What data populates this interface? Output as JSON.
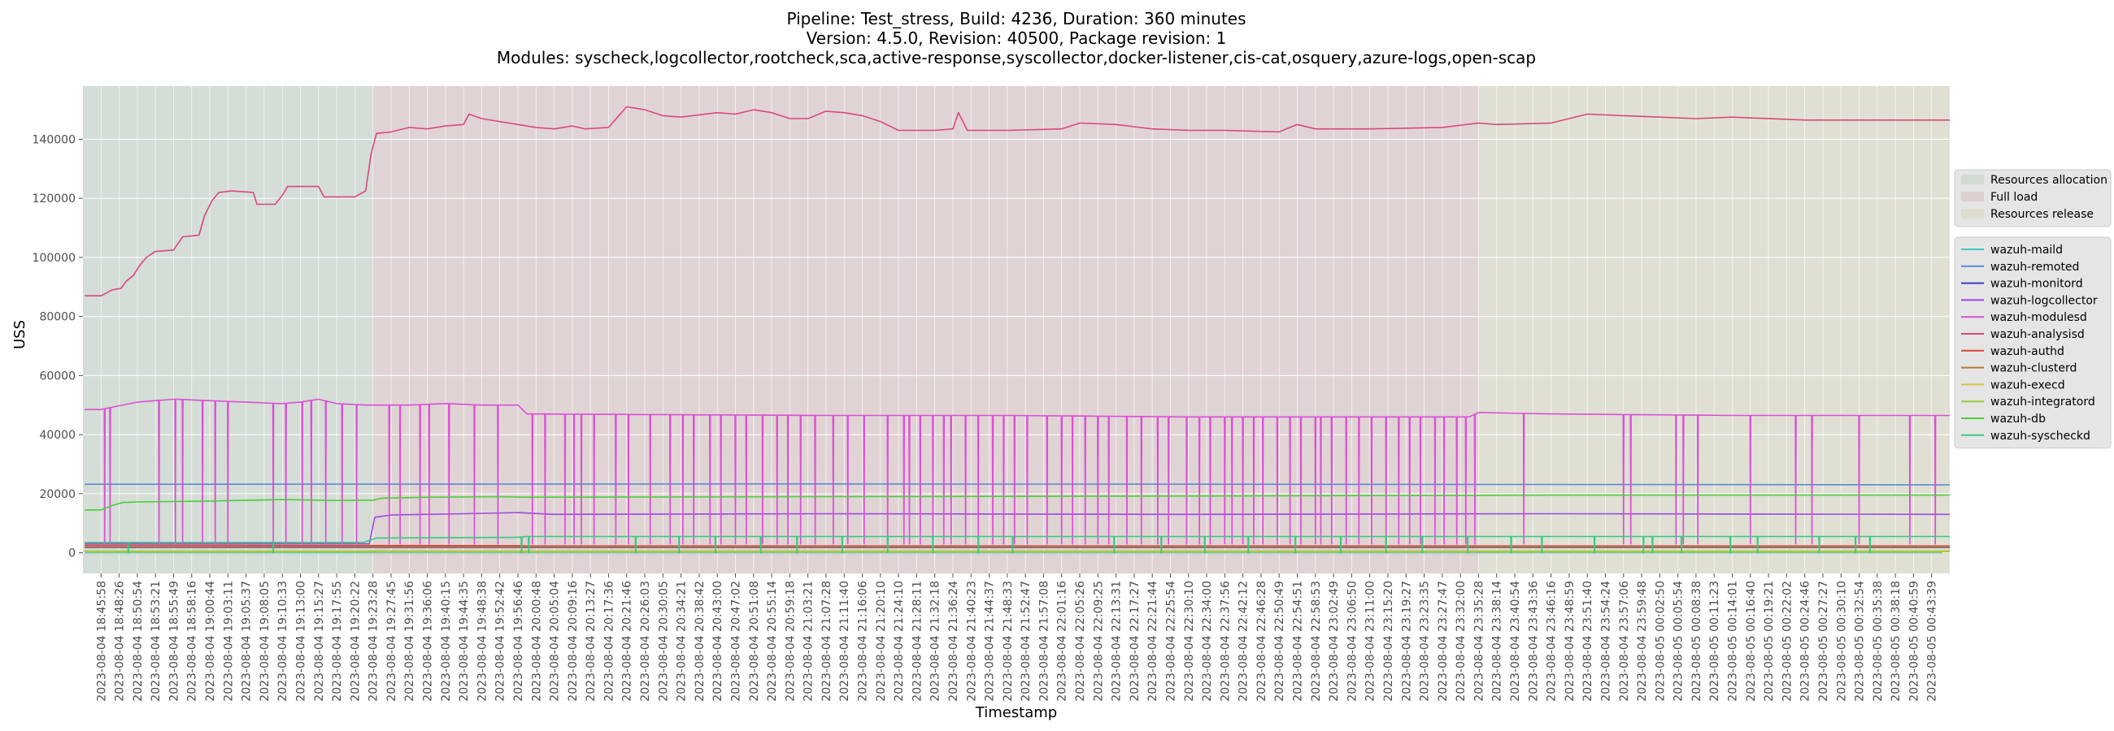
{
  "chart_data": {
    "type": "line",
    "title_lines": [
      "Pipeline: Test_stress, Build: 4236, Duration: 360 minutes",
      "Version: 4.5.0, Revision: 40500, Package revision: 1",
      "Modules: syscheck,logcollector,rootcheck,sca,active-response,syscollector,docker-listener,cis-cat,osquery,azure-logs,open-scap"
    ],
    "xlabel": "Timestamp",
    "ylabel": "USS",
    "ylim": [
      -7000,
      158000
    ],
    "yticks": [
      0,
      20000,
      40000,
      60000,
      80000,
      100000,
      120000,
      140000
    ],
    "ytick_labels": [
      "0",
      "20000",
      "40000",
      "60000",
      "80000",
      "100000",
      "120000",
      "140000"
    ],
    "x_tick_labels": [
      "2023-08-04 18:45:58",
      "2023-08-04 18:48:26",
      "2023-08-04 18:50:54",
      "2023-08-04 18:53:21",
      "2023-08-04 18:55:49",
      "2023-08-04 18:58:16",
      "2023-08-04 19:00:44",
      "2023-08-04 19:03:11",
      "2023-08-04 19:05:37",
      "2023-08-04 19:08:05",
      "2023-08-04 19:10:33",
      "2023-08-04 19:13:00",
      "2023-08-04 19:15:27",
      "2023-08-04 19:17:55",
      "2023-08-04 19:20:22",
      "2023-08-04 19:23:28",
      "2023-08-04 19:27:45",
      "2023-08-04 19:31:56",
      "2023-08-04 19:36:06",
      "2023-08-04 19:40:15",
      "2023-08-04 19:44:35",
      "2023-08-04 19:48:38",
      "2023-08-04 19:52:42",
      "2023-08-04 19:56:46",
      "2023-08-04 20:00:48",
      "2023-08-04 20:05:04",
      "2023-08-04 20:09:16",
      "2023-08-04 20:13:27",
      "2023-08-04 20:17:36",
      "2023-08-04 20:21:46",
      "2023-08-04 20:26:03",
      "2023-08-04 20:30:05",
      "2023-08-04 20:34:21",
      "2023-08-04 20:38:42",
      "2023-08-04 20:43:00",
      "2023-08-04 20:47:02",
      "2023-08-04 20:51:08",
      "2023-08-04 20:55:14",
      "2023-08-04 20:59:18",
      "2023-08-04 21:03:21",
      "2023-08-04 21:07:28",
      "2023-08-04 21:11:40",
      "2023-08-04 21:16:06",
      "2023-08-04 21:20:10",
      "2023-08-04 21:24:10",
      "2023-08-04 21:28:11",
      "2023-08-04 21:32:18",
      "2023-08-04 21:36:24",
      "2023-08-04 21:40:23",
      "2023-08-04 21:44:37",
      "2023-08-04 21:48:33",
      "2023-08-04 21:52:47",
      "2023-08-04 21:57:08",
      "2023-08-04 22:01:16",
      "2023-08-04 22:05:26",
      "2023-08-04 22:09:25",
      "2023-08-04 22:13:31",
      "2023-08-04 22:17:27",
      "2023-08-04 22:21:44",
      "2023-08-04 22:25:54",
      "2023-08-04 22:30:10",
      "2023-08-04 22:34:00",
      "2023-08-04 22:37:56",
      "2023-08-04 22:42:12",
      "2023-08-04 22:46:28",
      "2023-08-04 22:50:49",
      "2023-08-04 22:54:51",
      "2023-08-04 22:58:53",
      "2023-08-04 23:02:49",
      "2023-08-04 23:06:50",
      "2023-08-04 23:11:00",
      "2023-08-04 23:15:20",
      "2023-08-04 23:19:27",
      "2023-08-04 23:23:35",
      "2023-08-04 23:27:47",
      "2023-08-04 23:32:00",
      "2023-08-04 23:35:28",
      "2023-08-04 23:38:14",
      "2023-08-04 23:40:54",
      "2023-08-04 23:43:36",
      "2023-08-04 23:46:16",
      "2023-08-04 23:48:59",
      "2023-08-04 23:51:40",
      "2023-08-04 23:54:24",
      "2023-08-04 23:57:06",
      "2023-08-04 23:59:48",
      "2023-08-05 00:02:50",
      "2023-08-05 00:05:54",
      "2023-08-05 00:08:38",
      "2023-08-05 00:11:23",
      "2023-08-05 00:14:01",
      "2023-08-05 00:16:40",
      "2023-08-05 00:19:21",
      "2023-08-05 00:22:02",
      "2023-08-05 00:24:46",
      "2023-08-05 00:27:27",
      "2023-08-05 00:30:10",
      "2023-08-05 00:32:54",
      "2023-08-05 00:35:38",
      "2023-08-05 00:38:18",
      "2023-08-05 00:40:59",
      "2023-08-05 00:43:39"
    ],
    "phases": [
      {
        "name": "Resources allocation",
        "color": "#b7cbbd",
        "from_tick": 0,
        "to_tick": 15
      },
      {
        "name": "Full load",
        "color": "#d3b6b8",
        "from_tick": 15,
        "to_tick": 76
      },
      {
        "name": "Resources release",
        "color": "#d1d2b6",
        "from_tick": 76,
        "to_tick": 102
      }
    ],
    "grid": true,
    "legend_placement": "right",
    "series": [
      {
        "name": "wazuh-maild",
        "color": "#3fc8c4",
        "points": [
          [
            0,
            0
          ]
        ],
        "sparse_dips": []
      },
      {
        "name": "wazuh-remoted",
        "color": "#5b8ad6",
        "points": [
          [
            0,
            23200
          ],
          [
            40,
            23300
          ],
          [
            102,
            23000
          ]
        ],
        "sparse_dips": []
      },
      {
        "name": "wazuh-monitord",
        "color": "#3a3ac2",
        "points": [
          [
            0,
            1800
          ],
          [
            102,
            1800
          ]
        ],
        "sparse_dips": []
      },
      {
        "name": "wazuh-logcollector",
        "color": "#9a48e0",
        "points": [
          [
            0,
            3000
          ],
          [
            14.8,
            3000
          ],
          [
            15.1,
            12000
          ],
          [
            16,
            12800
          ],
          [
            20,
            13200
          ],
          [
            23,
            13600
          ],
          [
            25,
            13000
          ],
          [
            40,
            13200
          ],
          [
            60,
            13000
          ],
          [
            80,
            13200
          ],
          [
            102,
            13000
          ]
        ],
        "sparse_dips": []
      },
      {
        "name": "wazuh-modulesd",
        "color": "#dc4fd6",
        "points": [
          [
            0,
            48500
          ],
          [
            0.8,
            49500
          ],
          [
            2,
            51000
          ],
          [
            4,
            52000
          ],
          [
            6,
            51500
          ],
          [
            8,
            51000
          ],
          [
            10,
            50500
          ],
          [
            11,
            51000
          ],
          [
            12,
            52000
          ],
          [
            13,
            50500
          ],
          [
            14.6,
            50000
          ],
          [
            15.2,
            50000
          ],
          [
            17,
            50000
          ],
          [
            19,
            50500
          ],
          [
            21,
            50000
          ],
          [
            23,
            50000
          ],
          [
            23.5,
            47000
          ],
          [
            30,
            46800
          ],
          [
            40,
            46500
          ],
          [
            50,
            46500
          ],
          [
            60,
            46000
          ],
          [
            70,
            46000
          ],
          [
            75.5,
            46000
          ],
          [
            76,
            47500
          ],
          [
            80,
            47000
          ],
          [
            90,
            46500
          ],
          [
            102,
            46500
          ]
        ],
        "sparse_dips": [
          0.2,
          0.5,
          3.2,
          4.1,
          4.5,
          5.6,
          6.3,
          7,
          9.5,
          10.2,
          11.1,
          11.6,
          12.4,
          13.3,
          14.1,
          15.9,
          16.5,
          17.6,
          18.1,
          19.2,
          20.6,
          21.9,
          23.8,
          24.5,
          25.6,
          26.1,
          26.5,
          27.2,
          28.4,
          29.1,
          30.3,
          31.4,
          32.1,
          32.7,
          33.6,
          34.2,
          35,
          35.6,
          36.5,
          37.3,
          37.9,
          38.6,
          39.4,
          40.4,
          41.2,
          42.1,
          43.4,
          44.3,
          44.6,
          45.2,
          45.9,
          46.5,
          46.9,
          47.7,
          48.4,
          49.2,
          49.8,
          50.4,
          51.1,
          52.2,
          53,
          53.6,
          54.3,
          55,
          55.6,
          56.6,
          57.4,
          58.3,
          58.9,
          59.9,
          60.6,
          61.2,
          62,
          62.4,
          63,
          63.6,
          64.1,
          64.9,
          65.6,
          66.2,
          67,
          67.3,
          67.9,
          68.7,
          69.4,
          70.1,
          70.9,
          71.6,
          72.2,
          72.8,
          73.6,
          74.1,
          74.8,
          75.3,
          75.8,
          78.5,
          84,
          84.4,
          86.9,
          87.3,
          88.1,
          91,
          93.5,
          94.4,
          97,
          99.8,
          101.2
        ]
      },
      {
        "name": "wazuh-analysisd",
        "color": "#d9497a",
        "points": [
          [
            0,
            87000
          ],
          [
            0.6,
            89000
          ],
          [
            1.1,
            89500
          ],
          [
            1.4,
            92000
          ],
          [
            1.8,
            94000
          ],
          [
            2.1,
            97000
          ],
          [
            2.5,
            100000
          ],
          [
            3,
            102000
          ],
          [
            4,
            102500
          ],
          [
            4.5,
            107000
          ],
          [
            5.4,
            107500
          ],
          [
            5.7,
            114000
          ],
          [
            6.1,
            119000
          ],
          [
            6.5,
            122000
          ],
          [
            7.2,
            122500
          ],
          [
            8.4,
            122000
          ],
          [
            8.6,
            118000
          ],
          [
            9.6,
            118000
          ],
          [
            10,
            121000
          ],
          [
            10.3,
            124000
          ],
          [
            12,
            124000
          ],
          [
            12.3,
            120500
          ],
          [
            14,
            120500
          ],
          [
            14.6,
            122500
          ],
          [
            14.9,
            135000
          ],
          [
            15.2,
            142000
          ],
          [
            16,
            142500
          ],
          [
            17,
            144000
          ],
          [
            18,
            143500
          ],
          [
            19,
            144500
          ],
          [
            20,
            145000
          ],
          [
            20.3,
            148500
          ],
          [
            21,
            147000
          ],
          [
            23,
            145000
          ],
          [
            24,
            144000
          ],
          [
            25,
            143500
          ],
          [
            26,
            144500
          ],
          [
            26.7,
            143500
          ],
          [
            28,
            144000
          ],
          [
            29,
            151000
          ],
          [
            30,
            150000
          ],
          [
            31,
            148000
          ],
          [
            32,
            147500
          ],
          [
            34,
            149000
          ],
          [
            35,
            148500
          ],
          [
            36,
            150000
          ],
          [
            37,
            149000
          ],
          [
            38,
            147000
          ],
          [
            39,
            147000
          ],
          [
            40,
            149500
          ],
          [
            41,
            149000
          ],
          [
            42,
            148000
          ],
          [
            43,
            146000
          ],
          [
            44,
            143000
          ],
          [
            46,
            143000
          ],
          [
            47,
            143500
          ],
          [
            47.3,
            149000
          ],
          [
            47.8,
            143000
          ],
          [
            50,
            143000
          ],
          [
            53,
            143500
          ],
          [
            54,
            145500
          ],
          [
            56,
            145000
          ],
          [
            58,
            143500
          ],
          [
            60,
            143000
          ],
          [
            62,
            143000
          ],
          [
            65,
            142500
          ],
          [
            66,
            145000
          ],
          [
            67,
            143500
          ],
          [
            70,
            143500
          ],
          [
            74,
            144000
          ],
          [
            76,
            145500
          ],
          [
            77,
            145000
          ],
          [
            80,
            145500
          ],
          [
            82,
            148500
          ],
          [
            84,
            148000
          ],
          [
            88,
            147000
          ],
          [
            90,
            147500
          ],
          [
            94,
            146500
          ],
          [
            102,
            146500
          ]
        ],
        "sparse_dips": []
      },
      {
        "name": "wazuh-authd",
        "color": "#e0413f",
        "points": [
          [
            0,
            2500
          ],
          [
            23,
            2400
          ],
          [
            23.5,
            2300
          ],
          [
            102,
            2300
          ]
        ],
        "sparse_dips": []
      },
      {
        "name": "wazuh-clusterd",
        "color": "#b07a3b",
        "points": [
          [
            0,
            2000
          ],
          [
            102,
            2000
          ]
        ],
        "sparse_dips": []
      },
      {
        "name": "wazuh-execd",
        "color": "#d6c53f",
        "points": [
          [
            0,
            300
          ],
          [
            102,
            300
          ]
        ],
        "sparse_dips": []
      },
      {
        "name": "wazuh-integratord",
        "color": "#9bc83a",
        "points": [
          [
            0,
            600
          ],
          [
            102,
            600
          ]
        ],
        "sparse_dips": []
      },
      {
        "name": "wazuh-db",
        "color": "#4ccd3b",
        "points": [
          [
            0,
            14500
          ],
          [
            0.6,
            16000
          ],
          [
            1.2,
            17000
          ],
          [
            2,
            17200
          ],
          [
            6,
            17500
          ],
          [
            10,
            18000
          ],
          [
            13,
            17700
          ],
          [
            15,
            17800
          ],
          [
            15.5,
            18500
          ],
          [
            18,
            18800
          ],
          [
            22,
            19000
          ],
          [
            23.5,
            18800
          ],
          [
            40,
            19000
          ],
          [
            60,
            19200
          ],
          [
            80,
            19500
          ],
          [
            102,
            19500
          ]
        ],
        "sparse_dips": []
      },
      {
        "name": "wazuh-syscheckd",
        "color": "#36c97e",
        "points": [
          [
            0,
            3500
          ],
          [
            14.5,
            3500
          ],
          [
            15.2,
            5000
          ],
          [
            23,
            5200
          ],
          [
            23.5,
            5500
          ],
          [
            40,
            5500
          ],
          [
            102,
            5500
          ]
        ],
        "sparse_dips": [
          1.5,
          9.5,
          23.2,
          23.6,
          29.5,
          31.9,
          33.9,
          36.4,
          38.4,
          40.9,
          43.4,
          45.9,
          48.4,
          50.3,
          55.9,
          58.5,
          60.9,
          63.3,
          65.9,
          68.4,
          70.9,
          72.9,
          75.4,
          77.8,
          79.5,
          82.4,
          85.1,
          85.6,
          87.2,
          89.9,
          91.4,
          94.8,
          96.8,
          97.6
        ]
      }
    ]
  }
}
